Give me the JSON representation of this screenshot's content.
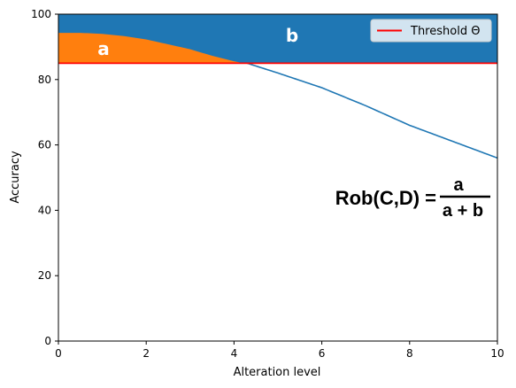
{
  "chart_data": {
    "type": "area",
    "xlabel": "Alteration level",
    "ylabel": "Accuracy",
    "xlim": [
      0,
      10
    ],
    "ylim": [
      0,
      100
    ],
    "xticks": [
      "0",
      "2",
      "4",
      "6",
      "8",
      "10"
    ],
    "yticks": [
      "0",
      "20",
      "40",
      "60",
      "80",
      "100"
    ],
    "grid": false,
    "threshold": {
      "name": "Threshold Θ",
      "value": 85,
      "color": "#ff0000"
    },
    "curve": {
      "color": "#1f77b4",
      "x": [
        0,
        0.5,
        1,
        1.5,
        2,
        2.5,
        3,
        3.5,
        4,
        4.3,
        5,
        6,
        7,
        8,
        9,
        10
      ],
      "y": [
        94.5,
        94.5,
        94.2,
        93.5,
        92.5,
        91,
        89.5,
        87.5,
        85.8,
        85,
        82,
        77.5,
        72,
        66,
        61,
        56
      ]
    },
    "region_a": {
      "label": "a",
      "color": "#ff7f0e"
    },
    "region_b": {
      "label": "b",
      "color": "#1f77b4"
    },
    "legend": {
      "position": "top-right",
      "entries": [
        "Threshold Θ"
      ]
    },
    "formula": {
      "lhs": "Rob(C,D) =",
      "numerator": "a",
      "denominator": "a + b"
    }
  }
}
